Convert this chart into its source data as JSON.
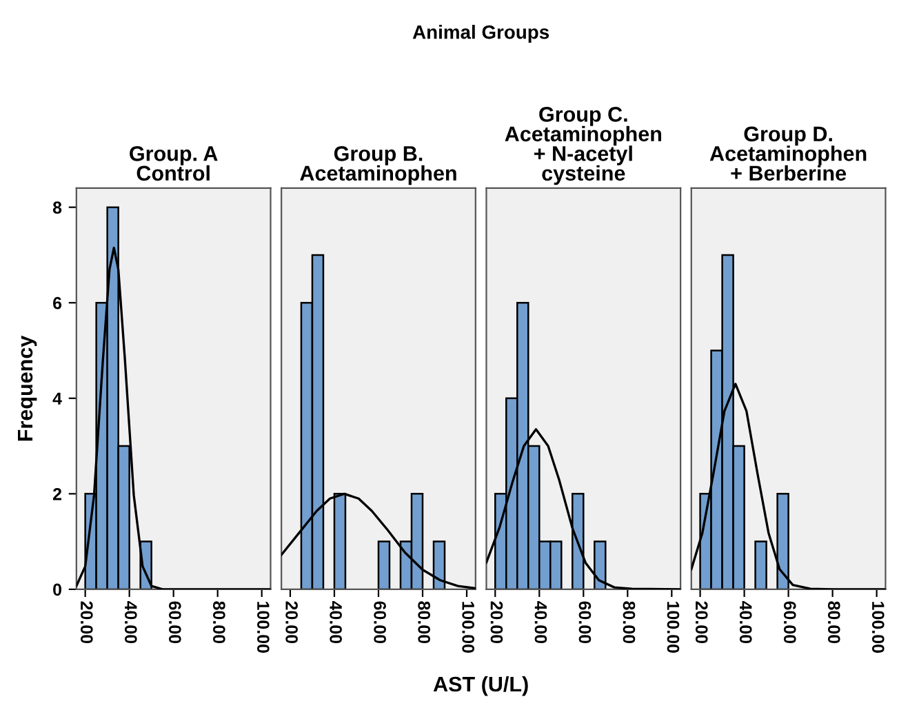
{
  "chart_data": [
    {
      "type": "histogram",
      "title": "Group. A\nControl",
      "ylabel": "Frequency",
      "annotations": [
        "Animal Groups",
        "AST (U/L)"
      ],
      "bins": [
        20,
        25,
        30,
        35,
        40,
        45,
        50
      ],
      "values": [
        2,
        6,
        8,
        3,
        0,
        1
      ],
      "color": "#729fcf",
      "series": [
        {
          "type": "line",
          "color": "#000000",
          "x": [
            16,
            20,
            24,
            28,
            31,
            33,
            35,
            38,
            42,
            46,
            50,
            55,
            104
          ],
          "values": [
            0.07,
            0.48,
            1.97,
            4.8,
            6.7,
            7.15,
            6.7,
            4.8,
            1.97,
            0.48,
            0.07,
            0,
            0
          ]
        }
      ],
      "xlim": [
        16,
        104
      ],
      "ylim": [
        0,
        8.4
      ],
      "xticks": [
        {
          "value": 20,
          "label": "20.00"
        },
        {
          "value": 40,
          "label": "40.00"
        },
        {
          "value": 60,
          "label": "60.00"
        },
        {
          "value": 80,
          "label": "80.00"
        },
        {
          "value": 100,
          "label": "100.00"
        }
      ],
      "yticks": [
        0,
        2,
        4,
        6,
        8
      ],
      "grid": false,
      "legend": false
    },
    {
      "type": "histogram",
      "title": "Group B.\nAcetaminophen",
      "bins": [
        25,
        30,
        35,
        40,
        45,
        50,
        55,
        60,
        65,
        70,
        75,
        80,
        85,
        90
      ],
      "values": [
        6,
        7,
        0,
        2,
        0,
        0,
        0,
        1,
        0,
        1,
        2,
        0,
        1
      ],
      "color": "#729fcf",
      "series": [
        {
          "type": "line",
          "color": "#000000",
          "x": [
            16,
            24,
            32,
            38,
            44.5,
            51,
            57,
            64,
            72,
            80,
            88,
            96,
            104
          ],
          "values": [
            0.72,
            1.18,
            1.64,
            1.9,
            2.0,
            1.9,
            1.64,
            1.25,
            0.77,
            0.41,
            0.19,
            0.07,
            0.02
          ]
        }
      ],
      "xlim": [
        16,
        104
      ],
      "ylim": [
        0,
        8.4
      ],
      "xticks": [
        {
          "value": 20,
          "label": "20.00"
        },
        {
          "value": 40,
          "label": "40.00"
        },
        {
          "value": 60,
          "label": "60.00"
        },
        {
          "value": 80,
          "label": "80.00"
        },
        {
          "value": 100,
          "label": "100.00"
        }
      ],
      "yticks": [
        0,
        2,
        4,
        6,
        8
      ],
      "tick_labels": "x",
      "grid": false,
      "legend": false
    },
    {
      "type": "histogram",
      "title": "Group C.\nAcetaminophen\n+ N-acetyl\ncysteine",
      "bins": [
        20,
        25,
        30,
        35,
        40,
        45,
        50,
        55,
        60,
        65,
        70
      ],
      "values": [
        2,
        4,
        6,
        3,
        1,
        1,
        0,
        2,
        0,
        1
      ],
      "color": "#729fcf",
      "series": [
        {
          "type": "line",
          "color": "#000000",
          "x": [
            16,
            22,
            28,
            33,
            38.5,
            44,
            49,
            55,
            61,
            67,
            74,
            82,
            104
          ],
          "values": [
            0.56,
            1.3,
            2.27,
            3.0,
            3.35,
            3.0,
            2.29,
            1.28,
            0.55,
            0.19,
            0.04,
            0.01,
            0
          ]
        }
      ],
      "xlim": [
        16,
        104
      ],
      "ylim": [
        0,
        8.4
      ],
      "xticks": [
        {
          "value": 20,
          "label": "20.00"
        },
        {
          "value": 40,
          "label": "40.00"
        },
        {
          "value": 60,
          "label": "60.00"
        },
        {
          "value": 80,
          "label": "80.00"
        },
        {
          "value": 100,
          "label": "100.00"
        }
      ],
      "yticks": [
        0,
        2,
        4,
        6,
        8
      ],
      "tick_labels": "x",
      "grid": false,
      "legend": false
    },
    {
      "type": "histogram",
      "title": "Group D.\nAcetaminophen\n+ Berberine",
      "bins": [
        20,
        25,
        30,
        35,
        40,
        45,
        50,
        55,
        60
      ],
      "values": [
        2,
        5,
        7,
        3,
        0,
        1,
        0,
        2
      ],
      "color": "#729fcf",
      "series": [
        {
          "type": "line",
          "color": "#000000",
          "x": [
            16,
            21,
            26,
            31,
            36,
            41,
            46,
            51,
            56,
            62,
            70,
            80,
            104
          ],
          "values": [
            0.42,
            1.18,
            2.42,
            3.73,
            4.3,
            3.73,
            2.42,
            1.18,
            0.42,
            0.09,
            0.01,
            0,
            0
          ]
        }
      ],
      "xlim": [
        16,
        104
      ],
      "ylim": [
        0,
        8.4
      ],
      "xticks": [
        {
          "value": 20,
          "label": "20.00"
        },
        {
          "value": 40,
          "label": "40.00"
        },
        {
          "value": 60,
          "label": "60.00"
        },
        {
          "value": 80,
          "label": "80.00"
        },
        {
          "value": 100,
          "label": "100.00"
        }
      ],
      "yticks": [
        0,
        2,
        4,
        6,
        8
      ],
      "tick_labels": "x",
      "grid": false,
      "legend": false
    }
  ]
}
